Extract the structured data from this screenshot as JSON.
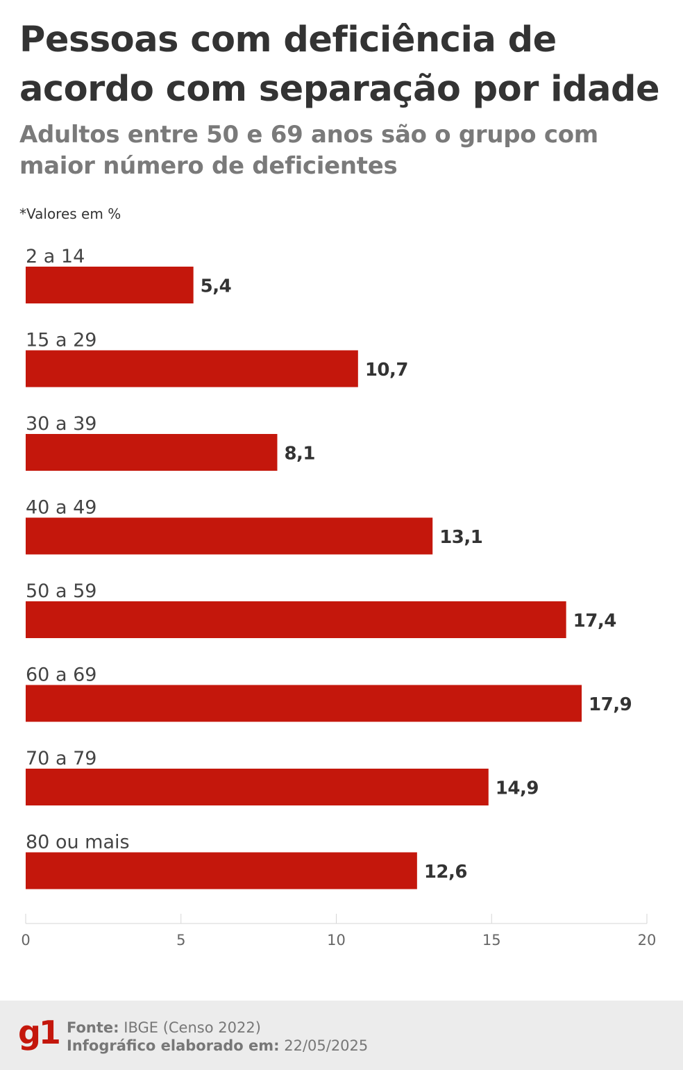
{
  "title": "Pessoas com deficiência de acordo com separação por idade",
  "subtitle": "Adultos entre 50 e 69 anos são o grupo com maior número de deficientes",
  "note": "*Valores em %",
  "chart_data": {
    "type": "bar",
    "orientation": "horizontal",
    "categories": [
      "2 a 14",
      "15 a 29",
      "30 a 39",
      "40 a 49",
      "50 a 59",
      "60 a 69",
      "70 a 79",
      "80 ou mais"
    ],
    "values": [
      5.4,
      10.7,
      8.1,
      13.1,
      17.4,
      17.9,
      14.9,
      12.6
    ],
    "value_labels": [
      "5,4",
      "10,7",
      "8,1",
      "13,1",
      "17,4",
      "17,9",
      "14,9",
      "12,6"
    ],
    "xlim": [
      0,
      20
    ],
    "xticks": [
      0,
      5,
      10,
      15,
      20
    ],
    "grid": false,
    "bar_color": "#c4170c"
  },
  "footer": {
    "logo": "g1",
    "source_label": "Fonte:",
    "source_value": "IBGE (Censo 2022)",
    "made_label": "Infográfico elaborado em:",
    "made_value": "22/05/2025"
  },
  "colors": {
    "accent": "#c4170c",
    "title": "#333333",
    "subtitle": "#7a7a7a",
    "footer_bg": "#ececec"
  }
}
